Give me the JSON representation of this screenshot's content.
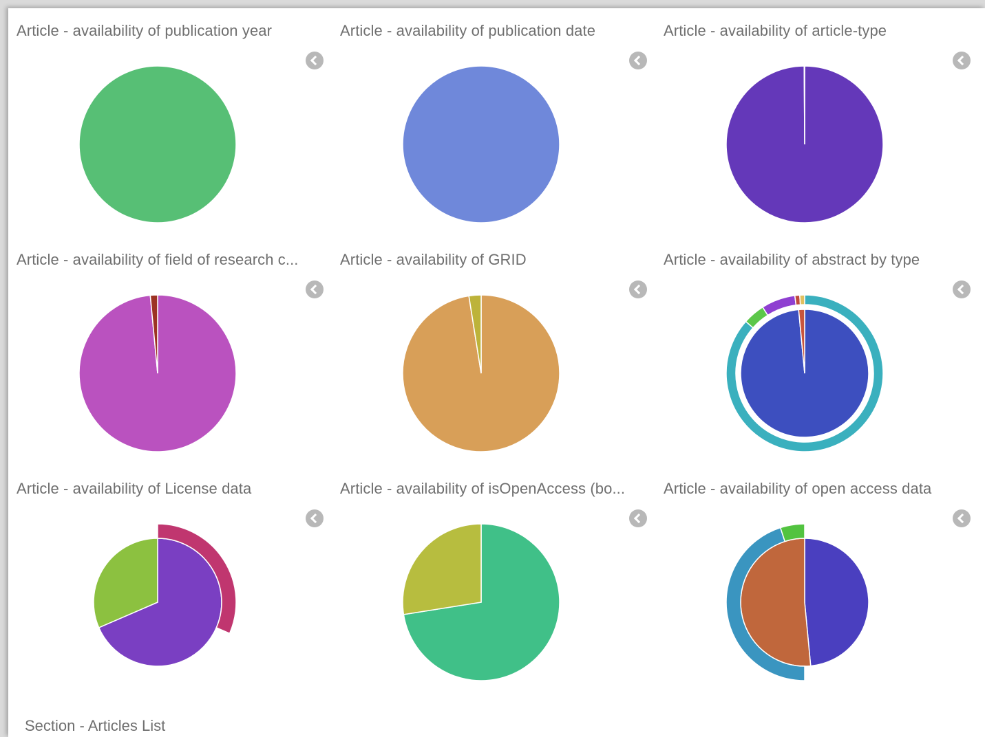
{
  "section": {
    "title": "Section - Articles List"
  },
  "chart_data": [
    {
      "type": "pie",
      "title": "Article - availability of publication year",
      "series": [
        {
          "slices": [
            {
              "value": 100,
              "color": "#57bf75"
            }
          ]
        }
      ]
    },
    {
      "type": "pie",
      "title": "Article - availability of publication date",
      "series": [
        {
          "slices": [
            {
              "value": 100,
              "color": "#6f88da"
            }
          ]
        }
      ]
    },
    {
      "type": "pie",
      "title": "Article - availability of article-type",
      "series": [
        {
          "slices": [
            {
              "value": 99.9,
              "color": "#6438b9"
            },
            {
              "value": 0.1,
              "color": "#ffffff"
            }
          ]
        }
      ]
    },
    {
      "type": "pie",
      "title": "Article - availability of field of research c...",
      "series": [
        {
          "slices": [
            {
              "value": 98.5,
              "color": "#ba52bf"
            },
            {
              "value": 1.5,
              "color": "#9d3324"
            }
          ]
        }
      ]
    },
    {
      "type": "pie",
      "title": "Article - availability of GRID",
      "series": [
        {
          "slices": [
            {
              "value": 97.5,
              "color": "#d89f58"
            },
            {
              "value": 2.5,
              "color": "#bdb33a"
            }
          ]
        }
      ]
    },
    {
      "type": "pie",
      "title": "Article - availability of abstract by type",
      "series": [
        {
          "slices": [
            {
              "value": 98.5,
              "color": "#3d4fbf"
            },
            {
              "value": 1.5,
              "color": "#c8553d"
            }
          ]
        },
        {
          "slices": [
            {
              "value": 86.5,
              "color": "#3ab0be"
            },
            {
              "value": 4.5,
              "color": "#5cc74a"
            },
            {
              "value": 7,
              "color": "#8f3fd1"
            },
            {
              "value": 1,
              "color": "#c04a3c"
            },
            {
              "value": 1,
              "color": "#e0c060"
            }
          ]
        }
      ]
    },
    {
      "type": "pie",
      "title": "Article - availability of License data",
      "series": [
        {
          "slices": [
            {
              "value": 68.5,
              "color": "#7a3fc2"
            },
            {
              "value": 31.5,
              "color": "#8cc140"
            }
          ]
        },
        {
          "slices": [
            {
              "value": 31.5,
              "color": "#c0366f"
            },
            {
              "value": 68.5,
              "color": null
            }
          ]
        }
      ]
    },
    {
      "type": "pie",
      "title": "Article - availability of isOpenAccess (bo...",
      "series": [
        {
          "slices": [
            {
              "value": 72.5,
              "color": "#40c088"
            },
            {
              "value": 27.5,
              "color": "#b7bd3f"
            }
          ]
        }
      ]
    },
    {
      "type": "pie",
      "title": "Article - availability of open access data",
      "series": [
        {
          "slices": [
            {
              "value": 48.5,
              "color": "#4a3fbf"
            },
            {
              "value": 51.5,
              "color": "#c0673c"
            }
          ]
        },
        {
          "slices": [
            {
              "value": 50,
              "color": null
            },
            {
              "value": 45,
              "color": "#3a95c0"
            },
            {
              "value": 5,
              "color": "#52c340"
            }
          ]
        }
      ]
    }
  ]
}
